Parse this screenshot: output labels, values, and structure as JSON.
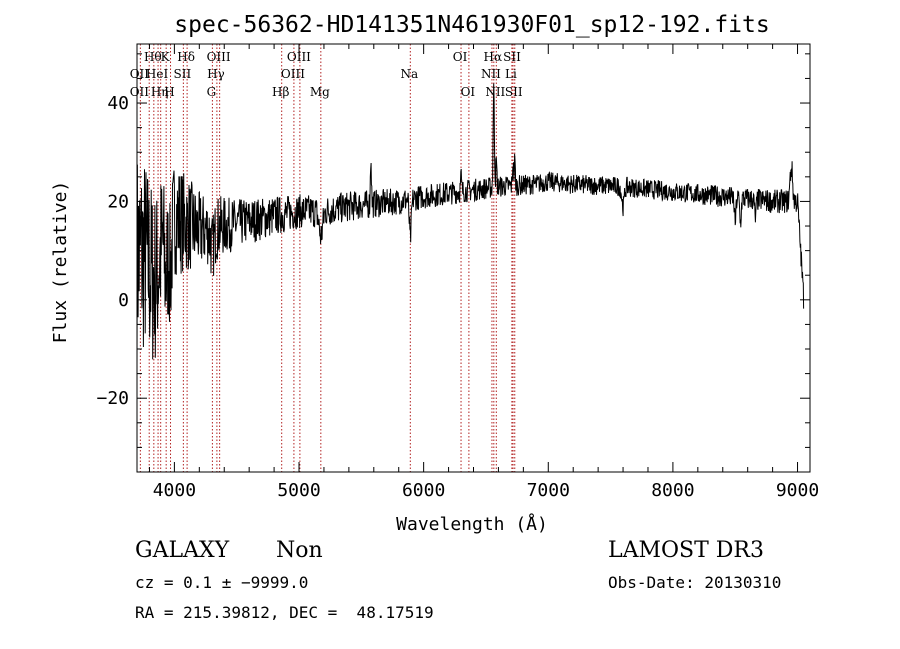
{
  "chart_data": {
    "type": "line",
    "title": "spec-56362-HD141351N461930F01_sp12-192.fits",
    "xlabel": "Wavelength (Å)",
    "ylabel": "Flux (relative)",
    "xlim": [
      3700,
      9100
    ],
    "ylim": [
      -35,
      52
    ],
    "xticks": [
      4000,
      5000,
      6000,
      7000,
      8000,
      9000
    ],
    "yticks": [
      -20,
      0,
      20,
      40
    ],
    "ytick_labels": [
      "−20",
      "0",
      "20",
      "40"
    ],
    "grid": false,
    "line_color": "#000000",
    "marker_color": "#b22222",
    "lines": [
      {
        "wavelength": 3727,
        "labels": [
          "OII"
        ],
        "row": 1
      },
      {
        "wavelength": 3727,
        "labels": [
          "OII"
        ],
        "row": 2
      },
      {
        "wavelength": 3798,
        "labels": [],
        "row": 0
      },
      {
        "wavelength": 3835,
        "labels": [
          "Hθ"
        ],
        "row": 0
      },
      {
        "wavelength": 3869,
        "labels": [
          "HeI"
        ],
        "row": 1
      },
      {
        "wavelength": 3890,
        "labels": [
          "Hη"
        ],
        "row": 2
      },
      {
        "wavelength": 3934,
        "labels": [
          "K"
        ],
        "row": 0
      },
      {
        "wavelength": 3969,
        "labels": [
          "H"
        ],
        "row": 2
      },
      {
        "wavelength": 4072,
        "labels": [
          "SII"
        ],
        "row": 1
      },
      {
        "wavelength": 4102,
        "labels": [
          "Hδ"
        ],
        "row": 0
      },
      {
        "wavelength": 4305,
        "labels": [
          "G"
        ],
        "row": 2
      },
      {
        "wavelength": 4341,
        "labels": [
          "Hγ"
        ],
        "row": 1
      },
      {
        "wavelength": 4363,
        "labels": [
          "OIII"
        ],
        "row": 0
      },
      {
        "wavelength": 4861,
        "labels": [
          "Hβ"
        ],
        "row": 2
      },
      {
        "wavelength": 4959,
        "labels": [
          "OIII"
        ],
        "row": 1
      },
      {
        "wavelength": 5007,
        "labels": [
          "OIII"
        ],
        "row": 0
      },
      {
        "wavelength": 5175,
        "labels": [
          "Mg"
        ],
        "row": 2
      },
      {
        "wavelength": 5893,
        "labels": [
          "Na"
        ],
        "row": 1
      },
      {
        "wavelength": 6300,
        "labels": [
          "OI"
        ],
        "row": 0
      },
      {
        "wavelength": 6363,
        "labels": [
          "OI"
        ],
        "row": 2
      },
      {
        "wavelength": 6548,
        "labels": [
          "NII"
        ],
        "row": 1
      },
      {
        "wavelength": 6563,
        "labels": [
          "Hα"
        ],
        "row": 0
      },
      {
        "wavelength": 6583,
        "labels": [
          "NII"
        ],
        "row": 2
      },
      {
        "wavelength": 6708,
        "labels": [
          "Li"
        ],
        "row": 1
      },
      {
        "wavelength": 6717,
        "labels": [
          "SII"
        ],
        "row": 0
      },
      {
        "wavelength": 6731,
        "labels": [
          "SII"
        ],
        "row": 2
      }
    ],
    "continuum_anchors": [
      [
        3700,
        9
      ],
      [
        3800,
        10
      ],
      [
        3900,
        15
      ],
      [
        4000,
        17
      ],
      [
        4200,
        14
      ],
      [
        4400,
        15
      ],
      [
        4600,
        16
      ],
      [
        4800,
        17
      ],
      [
        5000,
        18
      ],
      [
        5200,
        18
      ],
      [
        5400,
        19
      ],
      [
        5600,
        19.5
      ],
      [
        5800,
        20
      ],
      [
        6000,
        21
      ],
      [
        6300,
        22
      ],
      [
        6600,
        23
      ],
      [
        6900,
        23.5
      ],
      [
        7000,
        24
      ],
      [
        7200,
        23.5
      ],
      [
        7600,
        23
      ],
      [
        8000,
        22
      ],
      [
        8400,
        21
      ],
      [
        8800,
        20
      ],
      [
        9000,
        20
      ],
      [
        9050,
        0
      ]
    ],
    "features": [
      {
        "center": 3850,
        "sigma": 40,
        "amp": -8
      },
      {
        "center": 3933,
        "sigma": 12,
        "amp": -10
      },
      {
        "center": 3968,
        "sigma": 12,
        "amp": -10
      },
      {
        "center": 4305,
        "sigma": 15,
        "amp": -4
      },
      {
        "center": 5175,
        "sigma": 15,
        "amp": -5
      },
      {
        "center": 5577,
        "sigma": 4,
        "amp": 10
      },
      {
        "center": 5893,
        "sigma": 8,
        "amp": -8
      },
      {
        "center": 6300,
        "sigma": 4,
        "amp": 3
      },
      {
        "center": 6563,
        "sigma": 5,
        "amp": 20
      },
      {
        "center": 6583,
        "sigma": 4,
        "amp": 5
      },
      {
        "center": 6717,
        "sigma": 4,
        "amp": 5
      },
      {
        "center": 6731,
        "sigma": 4,
        "amp": 5
      },
      {
        "center": 7600,
        "sigma": 10,
        "amp": -4
      },
      {
        "center": 8500,
        "sigma": 6,
        "amp": -5
      },
      {
        "center": 8542,
        "sigma": 6,
        "amp": -5
      },
      {
        "center": 8662,
        "sigma": 6,
        "amp": -4
      },
      {
        "center": 8950,
        "sigma": 10,
        "amp": 7
      }
    ],
    "noise_profile": [
      [
        3700,
        22
      ],
      [
        3800,
        20
      ],
      [
        3900,
        16
      ],
      [
        4000,
        12
      ],
      [
        4200,
        8
      ],
      [
        4500,
        5
      ],
      [
        5000,
        3.5
      ],
      [
        6000,
        2.5
      ],
      [
        7000,
        2
      ],
      [
        8000,
        2
      ],
      [
        9000,
        2.5
      ]
    ]
  },
  "info": {
    "object_class": "GALAXY",
    "subclass": "Non",
    "survey": "LAMOST DR3",
    "redshift": "cz = 0.1 ± −9999.0",
    "obs_date": "Obs-Date: 20130310",
    "coords": "RA = 215.39812, DEC =  48.17519"
  }
}
